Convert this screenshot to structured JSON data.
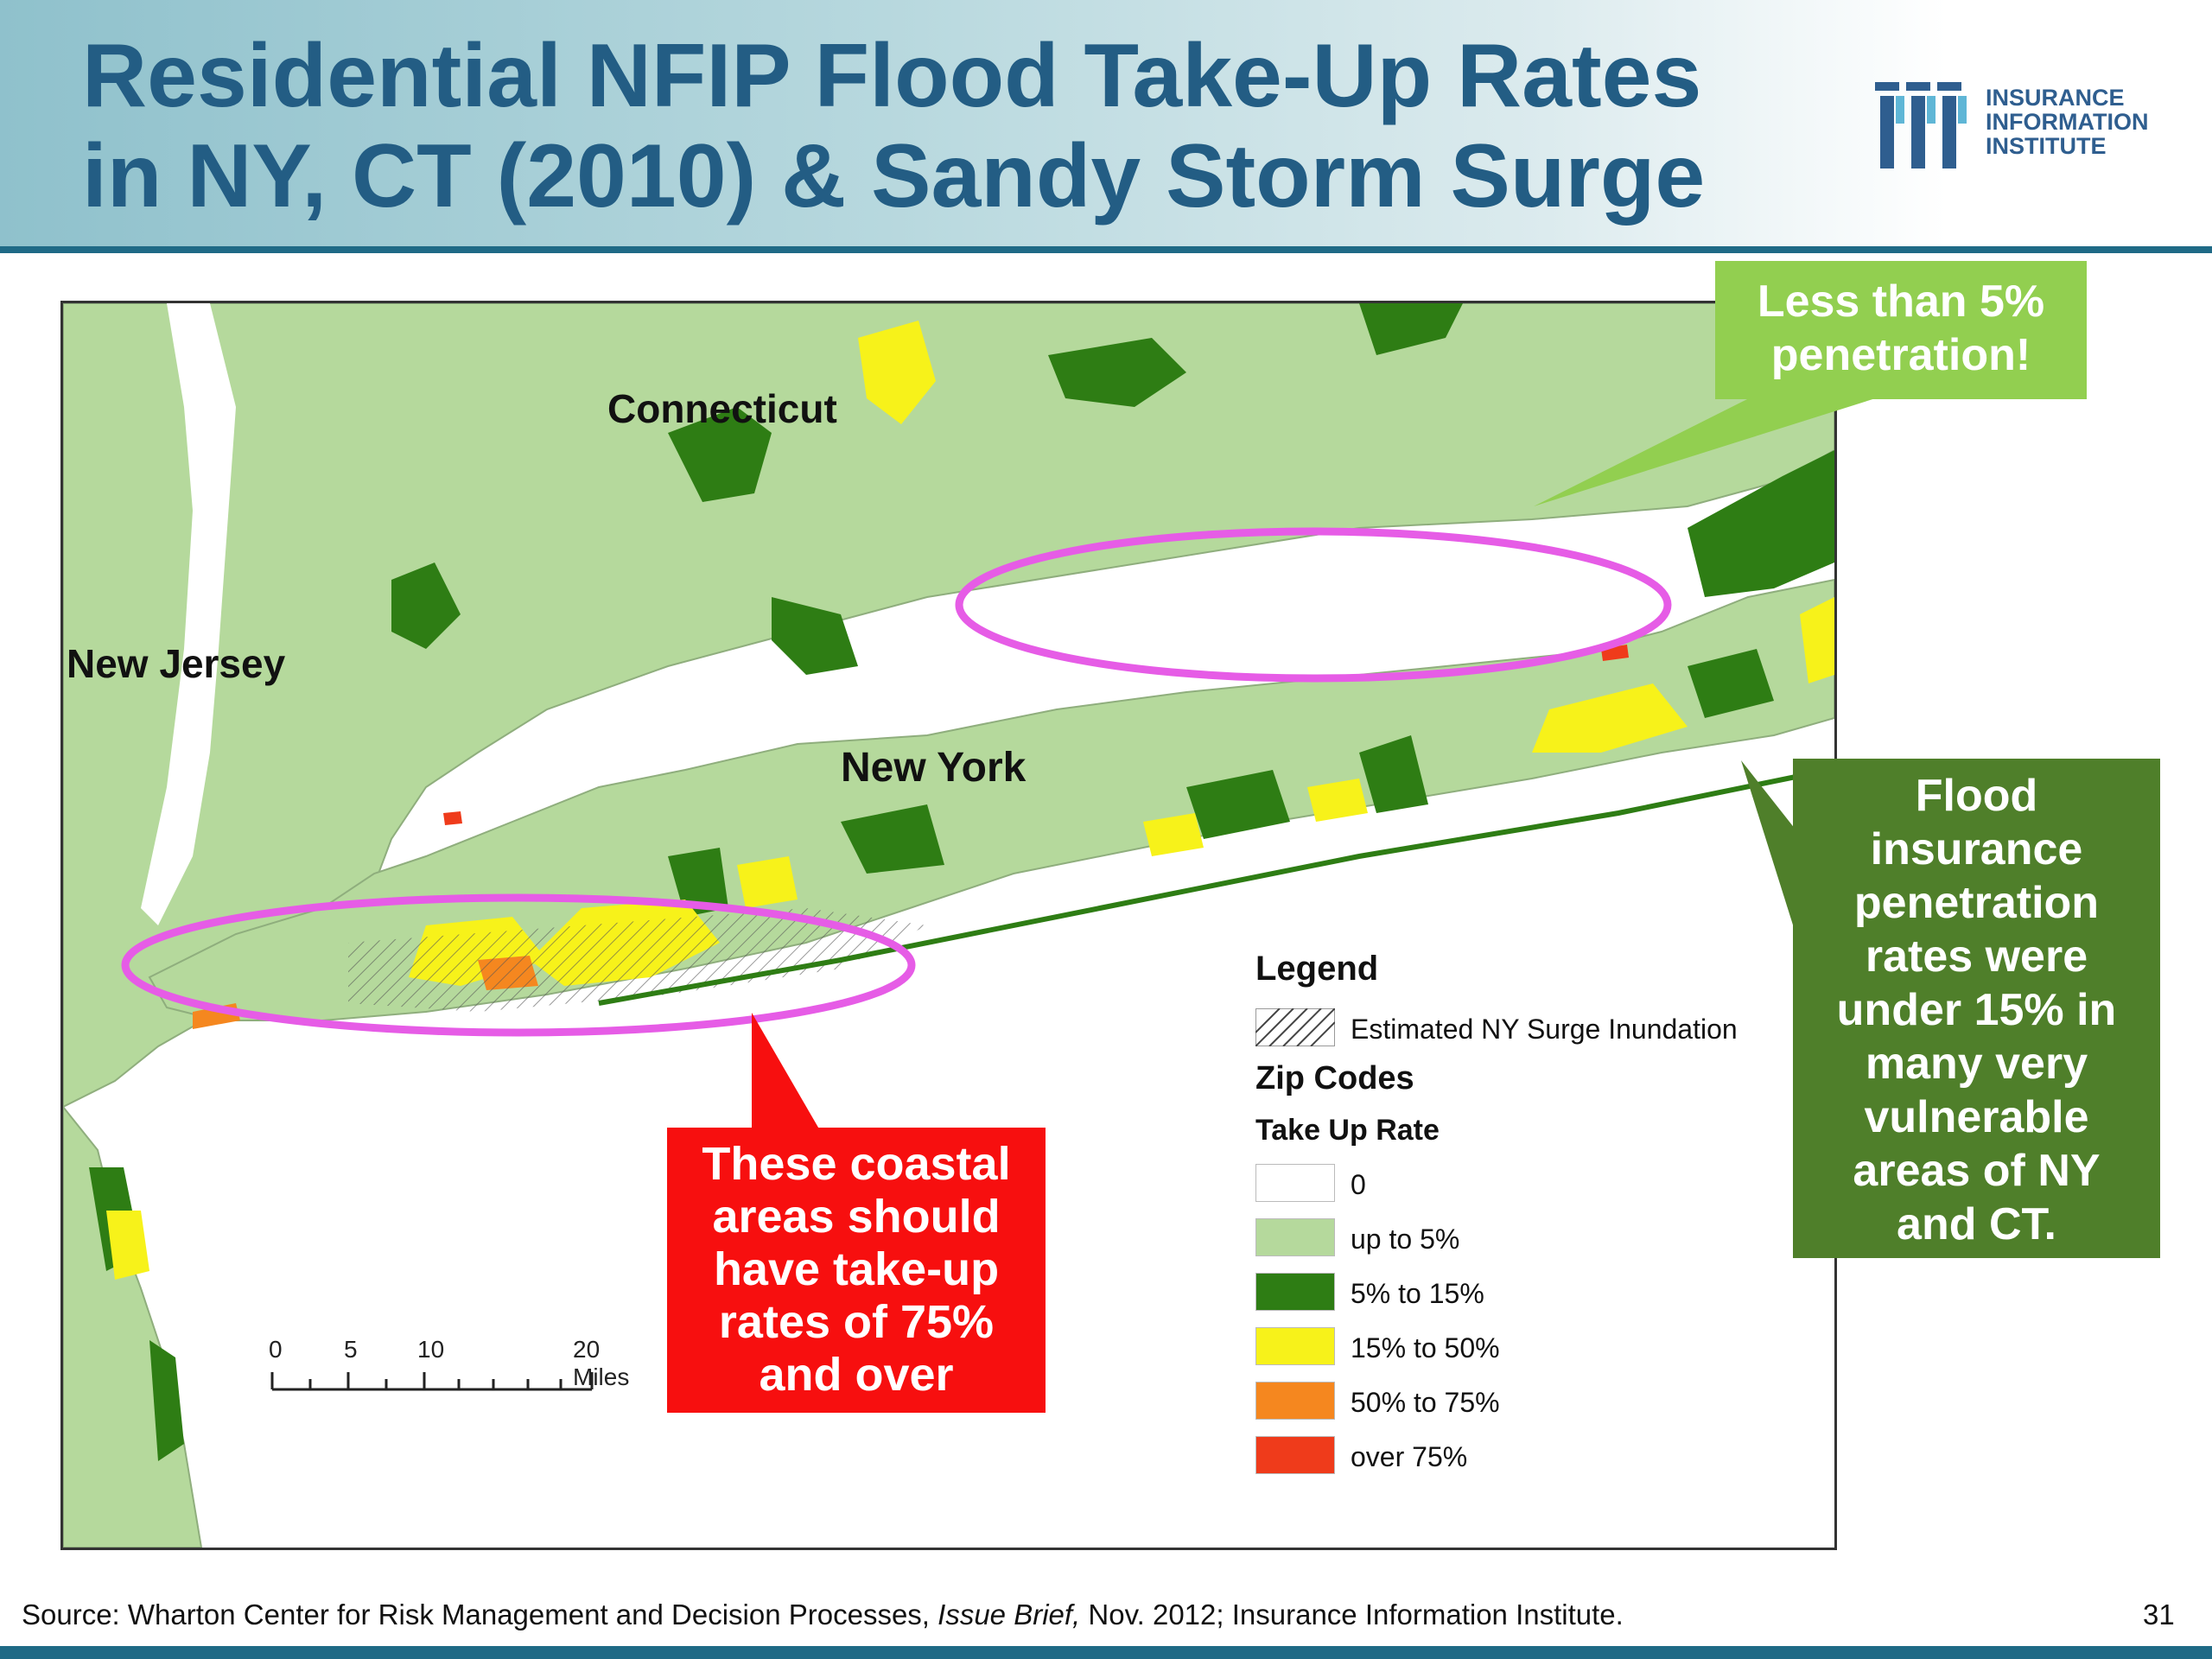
{
  "title": "Residential NFIP Flood Take-Up Rates\nin NY, CT (2010) & Sandy Storm Surge",
  "logo": {
    "text": "INSURANCE\nINFORMATION\nINSTITUTE",
    "icon": "iii-logo-icon",
    "color": "#2f5e8f"
  },
  "map": {
    "places": {
      "connecticut": "Connecticut",
      "new_jersey": "New Jersey",
      "new_york": "New York"
    },
    "scale_bar": {
      "labels": [
        "0",
        "5",
        "10",
        "20 Miles"
      ]
    },
    "colors": {
      "water": "#ffffff",
      "rate_0": "#ffffff",
      "up_to_5": "#b5d99c",
      "5_to_15": "#2e7d14",
      "15_to_50": "#f7f21a",
      "50_to_75": "#f5871f",
      "over_75": "#ef3b1b",
      "highlight": "#e65ce6",
      "border": "#7a7a7a"
    }
  },
  "legend": {
    "title": "Legend",
    "surge_label": "Estimated NY Surge Inundation",
    "zip_codes": "Zip Codes",
    "take_up_rate": "Take Up Rate",
    "items": [
      {
        "label": "0",
        "color": "#ffffff"
      },
      {
        "label": "up to 5%",
        "color": "#b5d99c"
      },
      {
        "label": "5% to 15%",
        "color": "#2e7d14"
      },
      {
        "label": "15% to 50%",
        "color": "#f7f21a"
      },
      {
        "label": "50% to 75%",
        "color": "#f5871f"
      },
      {
        "label": "over 75%",
        "color": "#ef3b1b"
      }
    ]
  },
  "callouts": {
    "top": {
      "text": "Less than 5%\npenetration!",
      "color": "#92cf50"
    },
    "right": {
      "text": "Flood\ninsurance\npenetration\nrates were\nunder 15% in\nmany very\nvulnerable\nareas of  NY\nand CT.",
      "color": "#4f7f2a"
    },
    "red": {
      "text": "These coastal\nareas should\nhave take-up\nrates of 75%\nand over",
      "color": "#f70f0f"
    }
  },
  "footer": {
    "source_prefix": "Source: Wharton Center for Risk Management and Decision Processes, ",
    "source_italic": "Issue Brief,",
    "source_suffix": " Nov. 2012; Insurance Information Institute.",
    "page_number": "31"
  }
}
